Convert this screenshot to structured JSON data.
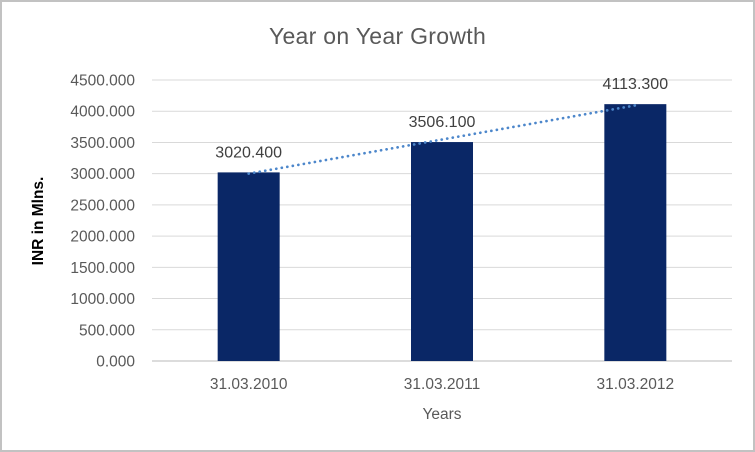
{
  "window": {
    "background": "#ffffff",
    "border_color": "#c2c2c2"
  },
  "chart_data": {
    "type": "bar",
    "title": "Year on Year Growth",
    "categories": [
      "31.03.2010",
      "31.03.2011",
      "31.03.2012"
    ],
    "values": [
      3020.4,
      3506.1,
      4113.3
    ],
    "data_labels": [
      "3020.400",
      "3506.100",
      "4113.300"
    ],
    "xlabel": "Years",
    "ylabel": "INR in Mlns.",
    "ylim": [
      0,
      4500
    ],
    "ytick_step": 500,
    "ytick_decimals": 3,
    "grid": true,
    "legend": false,
    "colors": {
      "bar": "#0a2766",
      "trendline": "#4d87cb",
      "gridline": "#d9d9d9",
      "axis_line": "#c6c6c6",
      "title_text": "#595959",
      "tick_text": "#595959",
      "data_label_text": "#404040",
      "axis_title_text": "#595959",
      "y_axis_title_text": "#000000"
    },
    "trendline": {
      "type": "linear",
      "style": "dotted"
    }
  }
}
